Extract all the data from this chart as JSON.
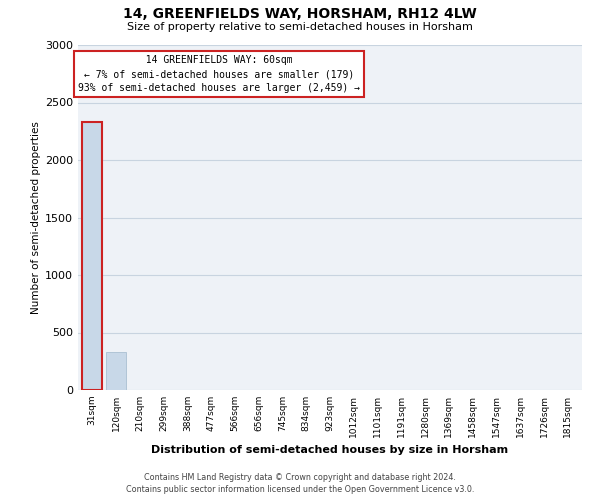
{
  "title": "14, GREENFIELDS WAY, HORSHAM, RH12 4LW",
  "subtitle": "Size of property relative to semi-detached houses in Horsham",
  "xlabel": "Distribution of semi-detached houses by size in Horsham",
  "ylabel": "Number of semi-detached properties",
  "bin_labels": [
    "31sqm",
    "120sqm",
    "210sqm",
    "299sqm",
    "388sqm",
    "477sqm",
    "566sqm",
    "656sqm",
    "745sqm",
    "834sqm",
    "923sqm",
    "1012sqm",
    "1101sqm",
    "1191sqm",
    "1280sqm",
    "1369sqm",
    "1458sqm",
    "1547sqm",
    "1637sqm",
    "1726sqm",
    "1815sqm"
  ],
  "bar_values": [
    2330,
    330,
    0,
    0,
    0,
    0,
    0,
    0,
    0,
    0,
    0,
    0,
    0,
    0,
    0,
    0,
    0,
    0,
    0,
    0,
    0
  ],
  "highlight_bar_index": 0,
  "bar_color": "#c8d8e8",
  "highlight_edge_color": "#cc2222",
  "bar_edge_color": "#a0b8cc",
  "annotation_title": "14 GREENFIELDS WAY: 60sqm",
  "annotation_line1": "← 7% of semi-detached houses are smaller (179)",
  "annotation_line2": "93% of semi-detached houses are larger (2,459) →",
  "annotation_box_color": "#ffffff",
  "annotation_box_edge": "#cc2222",
  "ylim": [
    0,
    3000
  ],
  "yticks": [
    0,
    500,
    1000,
    1500,
    2000,
    2500,
    3000
  ],
  "footer_line1": "Contains HM Land Registry data © Crown copyright and database right 2024.",
  "footer_line2": "Contains public sector information licensed under the Open Government Licence v3.0.",
  "grid_color": "#c8d4e0",
  "background_color": "#eef2f7"
}
